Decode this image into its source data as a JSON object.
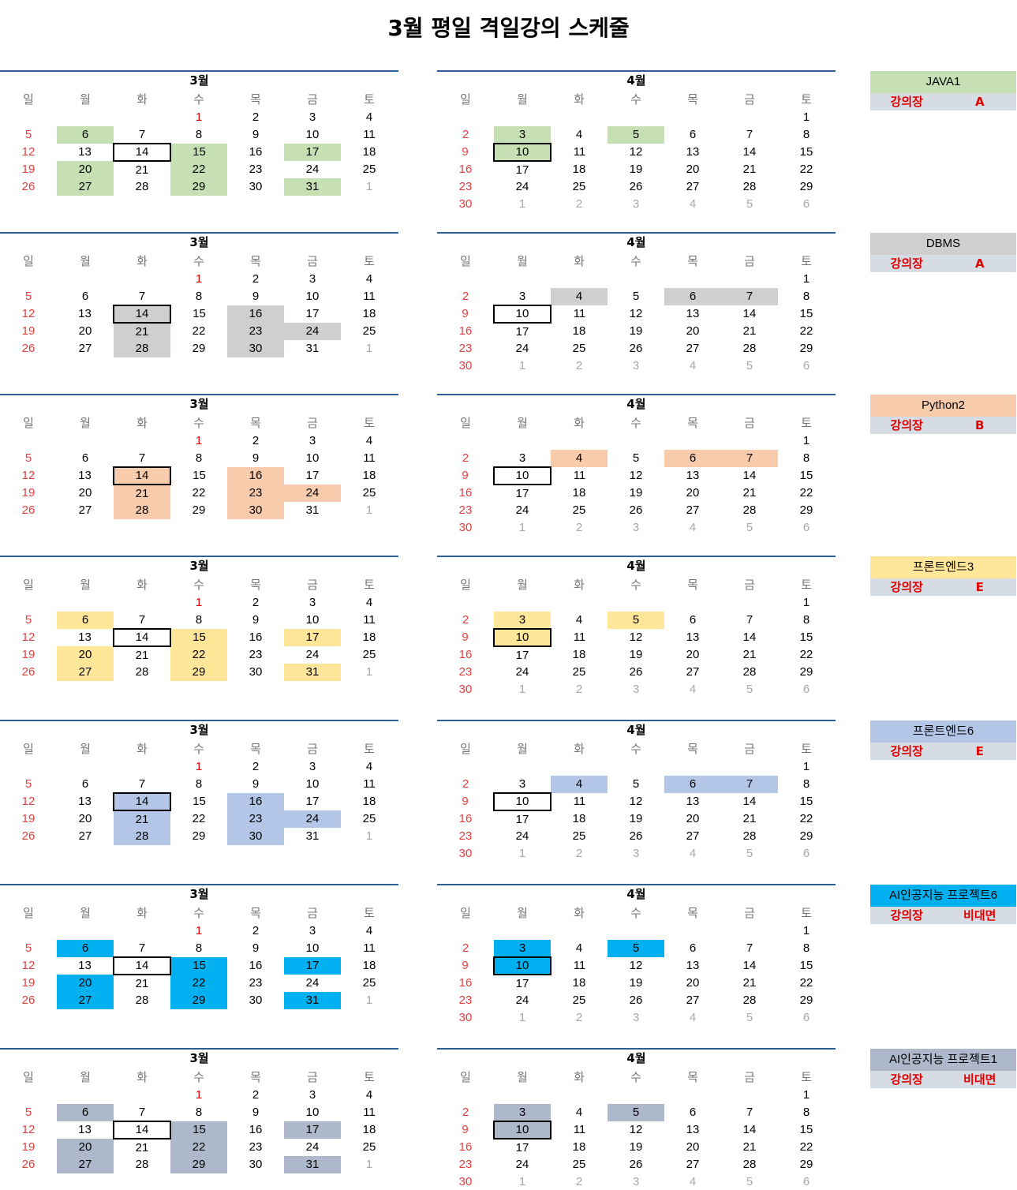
{
  "title": "3월 평일 격일강의 스케줄",
  "weekdays": [
    "일",
    "월",
    "화",
    "수",
    "목",
    "금",
    "토"
  ],
  "room_label": "강의장",
  "march": {
    "label": "3월",
    "rows": [
      [
        "",
        "",
        "",
        "1",
        "2",
        "3",
        "4"
      ],
      [
        "5",
        "6",
        "7",
        "8",
        "9",
        "10",
        "11"
      ],
      [
        "12",
        "13",
        "14",
        "15",
        "16",
        "17",
        "18"
      ],
      [
        "19",
        "20",
        "21",
        "22",
        "23",
        "24",
        "25"
      ],
      [
        "26",
        "27",
        "28",
        "29",
        "30",
        "31",
        "1"
      ]
    ]
  },
  "april": {
    "label": "4월",
    "rows": [
      [
        "",
        "",
        "",
        "",
        "",
        "",
        "1"
      ],
      [
        "2",
        "3",
        "4",
        "5",
        "6",
        "7",
        "8"
      ],
      [
        "9",
        "10",
        "11",
        "12",
        "13",
        "14",
        "15"
      ],
      [
        "16",
        "17",
        "18",
        "19",
        "20",
        "21",
        "22"
      ],
      [
        "23",
        "24",
        "25",
        "26",
        "27",
        "28",
        "29"
      ],
      [
        "30",
        "1",
        "2",
        "3",
        "4",
        "5",
        "6"
      ]
    ]
  },
  "courses": [
    {
      "name": "JAVA1",
      "room": "A",
      "color": "#c6e0b4",
      "pattern": "mwf"
    },
    {
      "name": "DBMS",
      "room": "A",
      "color": "#d0cece",
      "pattern": "tth"
    },
    {
      "name": "Python2",
      "room": "B",
      "color": "#f8cbad",
      "pattern": "tth"
    },
    {
      "name": "프론트엔드3",
      "room": "E",
      "color": "#ffe699",
      "pattern": "mwf"
    },
    {
      "name": "프론트엔드6",
      "room": "E",
      "color": "#b4c6e7",
      "pattern": "tth"
    },
    {
      "name": "AI인공지능 프로젝트6",
      "room": "비대면",
      "color": "#00b0f0",
      "pattern": "mwf"
    },
    {
      "name": "AI인공지능 프로젝트1",
      "room": "비대면",
      "color": "#adb9ca",
      "pattern": "mwf"
    }
  ]
}
